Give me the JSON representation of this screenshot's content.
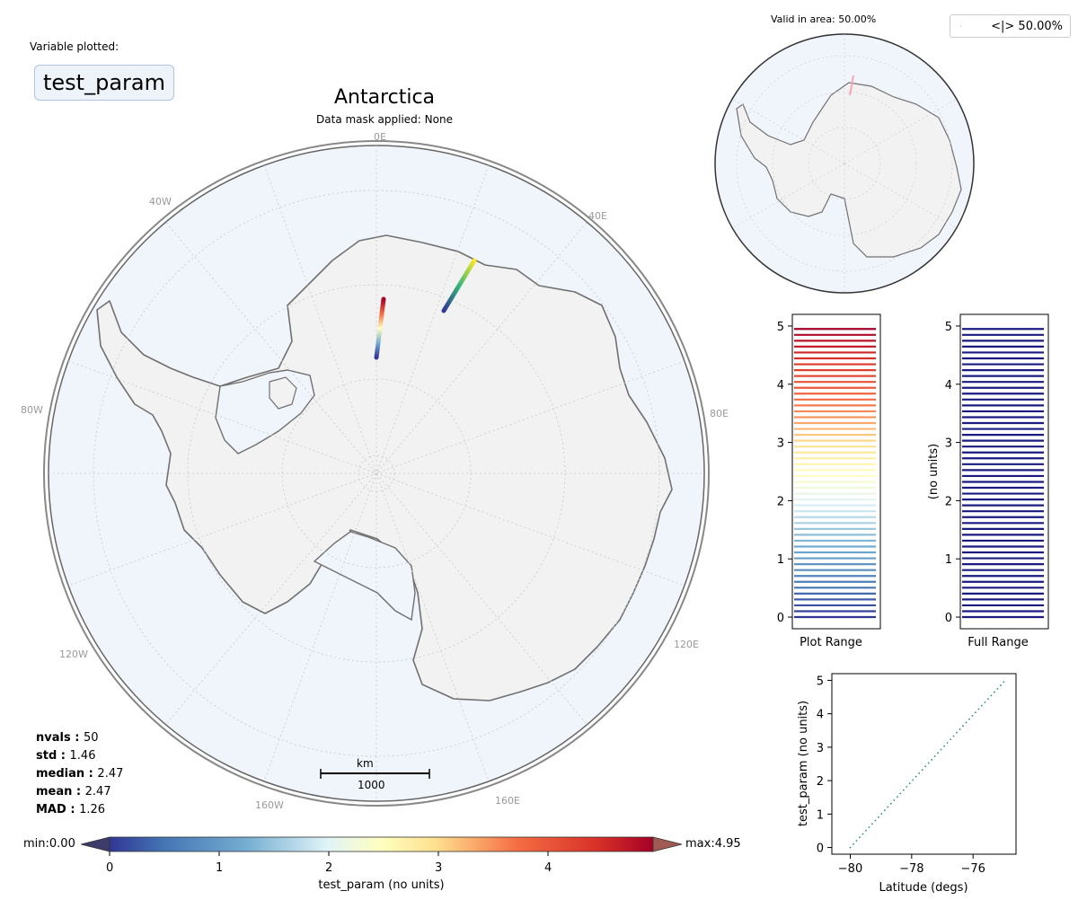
{
  "variable": {
    "label": "Variable plotted:",
    "name": "test_param"
  },
  "map": {
    "title": "Antarctica",
    "mask_text": "Data mask applied: None",
    "lon_labels": [
      "0E",
      "40E",
      "80E",
      "120E",
      "160E",
      "160W",
      "120W",
      "80W",
      "40W"
    ],
    "scalebar": {
      "unit": "km",
      "value": "1000"
    },
    "colors": {
      "ocean": "#f0f5fc",
      "land": "#f2f2f2",
      "coast": "#707070"
    }
  },
  "stats": [
    {
      "key": "nvals",
      "value": "50"
    },
    {
      "key": "std",
      "value": "1.46"
    },
    {
      "key": "median",
      "value": "2.47"
    },
    {
      "key": "mean",
      "value": "2.47"
    },
    {
      "key": "MAD",
      "value": "1.26"
    }
  ],
  "inset": {
    "valid_text": "Valid in area: 50.00%",
    "legend_text": "<|> 50.00%"
  },
  "colorbar": {
    "min_label": "min:0.00",
    "max_label": "max:4.95",
    "label": "test_param (no units)",
    "ticks": [
      "0",
      "1",
      "2",
      "3",
      "4"
    ],
    "cmap": "RdYlBu_r"
  },
  "chart_data": [
    {
      "type": "bar",
      "name": "Plot Range",
      "xlabel": "Plot Range",
      "ylabel": "",
      "ylim": [
        -0.2,
        5.2
      ],
      "yticks": [
        "0",
        "1",
        "2",
        "3",
        "4",
        "5"
      ],
      "values_start": 0,
      "values_step": 0.101,
      "count": 50,
      "color_scale": "RdYlBu_r"
    },
    {
      "type": "bar",
      "name": "Full Range",
      "xlabel": "Full Range",
      "ylabel": "(no units)",
      "ylim": [
        -0.2,
        5.2
      ],
      "yticks": [
        "0",
        "1",
        "2",
        "3",
        "4",
        "5"
      ],
      "values_start": 0,
      "values_step": 0.101,
      "count": 50,
      "color": "#1a1a80"
    },
    {
      "type": "scatter",
      "xlabel": "Latitude (degs)",
      "ylabel": "test_param (no units)",
      "xlim": [
        -80.6,
        -74.6
      ],
      "ylim": [
        -0.2,
        5.2
      ],
      "xticks": [
        "−80",
        "−78",
        "−76"
      ],
      "yticks": [
        "0",
        "1",
        "2",
        "3",
        "4",
        "5"
      ],
      "x": [
        -80,
        -75
      ],
      "y": [
        0,
        4.95
      ],
      "style": "dotted",
      "color": "#2a8a8a"
    }
  ]
}
